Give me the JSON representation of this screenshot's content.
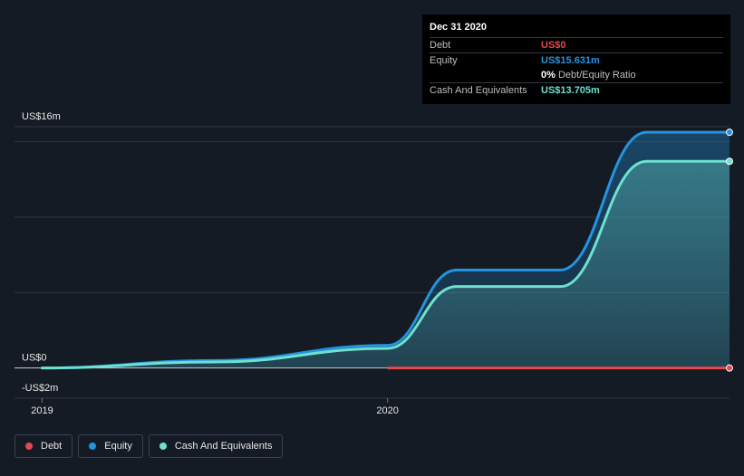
{
  "tooltip": {
    "date": "Dec 31 2020",
    "rows": {
      "debt_label": "Debt",
      "debt_value": "US$0",
      "equity_label": "Equity",
      "equity_value": "US$15.631m",
      "ratio_value": "0%",
      "ratio_label": "Debt/Equity Ratio",
      "cash_label": "Cash And Equivalents",
      "cash_value": "US$13.705m"
    }
  },
  "legend": [
    {
      "label": "Debt",
      "color": "#e5484d"
    },
    {
      "label": "Equity",
      "color": "#2394df"
    },
    {
      "label": "Cash And Equivalents",
      "color": "#6de0d0"
    }
  ],
  "colors": {
    "debt": "#e5484d",
    "equity": "#2394df",
    "cash": "#6de0d0",
    "grid": "#2e3540",
    "zero_line": "#d0d0d0"
  },
  "chart_data": {
    "type": "area",
    "ylim": [
      -2,
      16
    ],
    "y_tick_labels": [
      {
        "value": 16,
        "label": "US$16m"
      },
      {
        "value": 0,
        "label": "US$0"
      },
      {
        "value": -2,
        "label": "-US$2m"
      }
    ],
    "gridlines": [
      15,
      10,
      5
    ],
    "x_tick_labels": [
      {
        "value": 2019.0,
        "label": "2019"
      },
      {
        "value": 2020.0,
        "label": "2020"
      }
    ],
    "xlim": [
      2018.92,
      2020.99
    ],
    "series": [
      {
        "name": "Equity",
        "x": [
          2019.0,
          2019.5,
          2020.0,
          2020.2,
          2020.5,
          2020.75,
          2020.99
        ],
        "y": [
          0.0,
          0.5,
          1.5,
          6.5,
          6.5,
          15.631,
          15.631
        ]
      },
      {
        "name": "Cash And Equivalents",
        "x": [
          2019.0,
          2019.5,
          2020.0,
          2020.2,
          2020.5,
          2020.75,
          2020.99
        ],
        "y": [
          0.0,
          0.4,
          1.3,
          5.4,
          5.4,
          13.705,
          13.705
        ]
      },
      {
        "name": "Debt",
        "x": [
          2020.0,
          2020.99
        ],
        "y": [
          0,
          0
        ]
      }
    ]
  }
}
